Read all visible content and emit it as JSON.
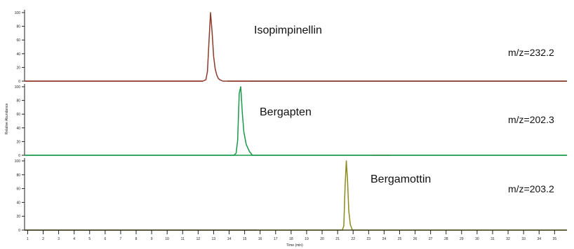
{
  "chart_data": {
    "type": "line",
    "ylabel": "Relative Abundance",
    "xlabel": "Time (min)",
    "x_ticks": [
      1,
      2,
      3,
      4,
      5,
      6,
      7,
      8,
      9,
      10,
      11,
      12,
      13,
      14,
      15,
      16,
      17,
      18,
      19,
      20,
      21,
      22,
      23,
      24,
      25,
      26,
      27,
      28,
      29,
      30,
      31,
      32,
      33,
      34,
      35
    ],
    "x_tick_labels": [
      "1",
      "2",
      "3",
      "4",
      "5",
      "6",
      "7",
      "8",
      "9",
      "10",
      "11",
      "12",
      "13",
      "14",
      "15",
      "16",
      "17",
      "18",
      "19",
      "20",
      "21",
      "22",
      "23",
      "24",
      "25",
      "26",
      "27",
      "28",
      "29",
      "30",
      "31",
      "32",
      "33",
      "34",
      "35"
    ],
    "xlim": [
      0.8,
      35.8
    ],
    "ylim": [
      0,
      100
    ],
    "y_ticks": [
      0,
      20,
      40,
      60,
      80,
      100
    ],
    "y_tick_labels": [
      "0",
      "20",
      "40",
      "60",
      "80",
      "100"
    ],
    "panels": [
      {
        "name": "Isopimpinellin",
        "mz_label": "m/z=232.2",
        "color": "#8b3a2a",
        "x": [
          0.8,
          12.3,
          12.5,
          12.6,
          12.7,
          12.8,
          12.9,
          13.0,
          13.1,
          13.2,
          13.3,
          13.4,
          13.6,
          35.8
        ],
        "y": [
          0,
          0,
          2,
          14,
          58,
          100,
          72,
          36,
          18,
          9,
          4,
          2,
          0,
          0
        ],
        "baseline_segments": [
          [
            0.8,
            12.3
          ],
          [
            13.9,
            15.4
          ],
          [
            15.4,
            35.8
          ]
        ],
        "baseline_colors": [
          "#8b3a2a",
          "#8b3a2a",
          "#222222"
        ]
      },
      {
        "name": "Bergapten",
        "mz_label": "m/z=202.3",
        "color": "#1a9a4a",
        "x": [
          0.8,
          14.3,
          14.45,
          14.55,
          14.65,
          14.75,
          14.85,
          14.95,
          15.1,
          15.3,
          15.5,
          35.8
        ],
        "y": [
          0,
          0,
          3,
          22,
          90,
          100,
          62,
          34,
          16,
          6,
          0,
          0
        ],
        "baseline_segments": [
          [
            0.8,
            23.2
          ],
          [
            23.2,
            24.4
          ],
          [
            24.4,
            35.8
          ]
        ],
        "baseline_colors": [
          "#1a9a4a",
          "#333333",
          "#1a9a4a"
        ]
      },
      {
        "name": "Bergamottin",
        "mz_label": "m/z=203.2",
        "color": "#8a8a1f",
        "x": [
          0.8,
          21.3,
          21.4,
          21.48,
          21.56,
          21.64,
          21.72,
          21.82,
          21.95,
          35.8
        ],
        "y": [
          0,
          0,
          6,
          62,
          100,
          72,
          28,
          8,
          0,
          0
        ],
        "baseline_segments": [
          [
            0.8,
            15.8
          ],
          [
            15.8,
            35.8
          ]
        ],
        "baseline_colors": [
          "#222222",
          "#8a8a1f"
        ]
      }
    ]
  }
}
